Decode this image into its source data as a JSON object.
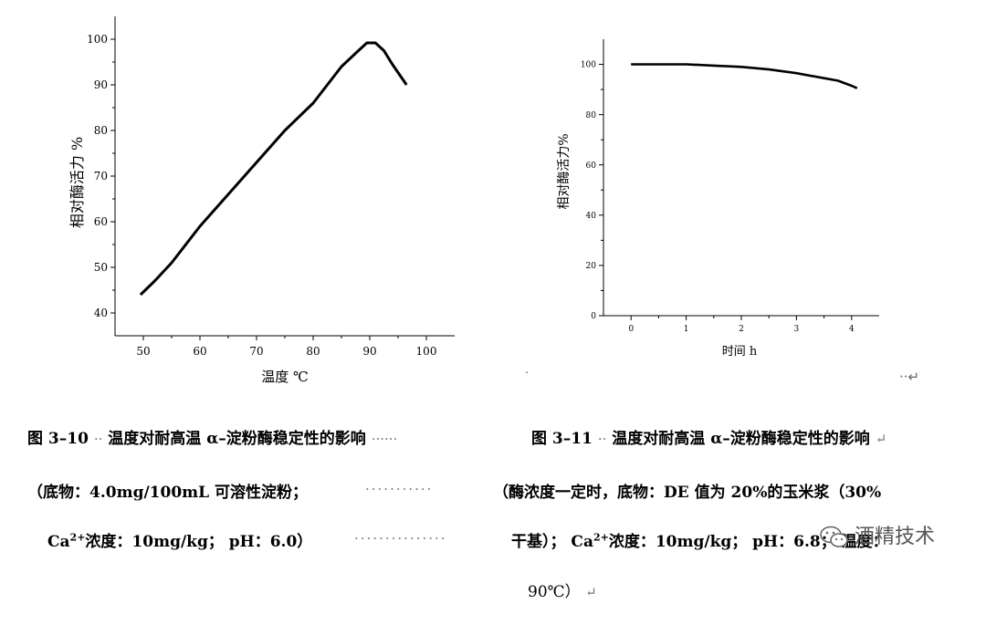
{
  "chart_data": [
    {
      "type": "line",
      "xlabel": "温度 ℃",
      "ylabel": "相对酶活力  %",
      "xlim": [
        45,
        105
      ],
      "ylim": [
        35,
        105
      ],
      "xticks": [
        50,
        60,
        70,
        80,
        90,
        100
      ],
      "yticks": [
        40,
        50,
        60,
        70,
        80,
        90,
        100
      ],
      "grid": false,
      "x": [
        49.5,
        52,
        55,
        60,
        65,
        70,
        75,
        80,
        85,
        88,
        89.5,
        91,
        92.5,
        94,
        96.5
      ],
      "y": [
        44,
        47,
        51,
        59,
        66,
        73,
        80,
        86,
        94,
        97.5,
        99.2,
        99.2,
        97.5,
        94.5,
        90
      ]
    },
    {
      "type": "line",
      "xlabel": "时间 h",
      "ylabel": "相对酶活力%",
      "xlim": [
        -0.5,
        4.5
      ],
      "ylim": [
        0,
        110
      ],
      "xticks": [
        0,
        1,
        2,
        3,
        4
      ],
      "yticks": [
        0,
        20,
        40,
        60,
        80,
        100
      ],
      "grid": false,
      "x": [
        0,
        0.5,
        1,
        1.5,
        2,
        2.5,
        3,
        3.5,
        3.75,
        4,
        4.1
      ],
      "y": [
        100,
        100,
        100,
        99.5,
        99,
        98,
        96.5,
        94.5,
        93.5,
        91.5,
        90.5
      ]
    }
  ],
  "captions": {
    "fig1_title": "图 3–10",
    "fig1_desc": "温度对耐高温 α–淀粉酶稳定性的影响",
    "fig2_title": "图 3–11",
    "fig2_desc": "温度对耐高温 α–淀粉酶稳定性的影响",
    "fig1_line2": "（底物：4.0mg/100mL 可溶性淀粉；",
    "fig2_line2": "（酶浓度一定时，底物：DE 值为 20%的玉米浆（30%",
    "fig1_line3_a": "Ca",
    "fig1_line3_sup": "2+",
    "fig1_line3_b": "浓度：10mg/kg；  pH：6.0）",
    "fig2_line3_a": "干基）；  Ca",
    "fig2_line3_sup": "2+",
    "fig2_line3_b": "浓度：10mg/kg；   pH：6.8；  温度：",
    "fig2_line4": "90℃）"
  },
  "marks": {
    "para": "↵",
    "arrow": "··↵"
  },
  "watermark": {
    "text": "酒精技术",
    "icon": "wechat-icon"
  }
}
